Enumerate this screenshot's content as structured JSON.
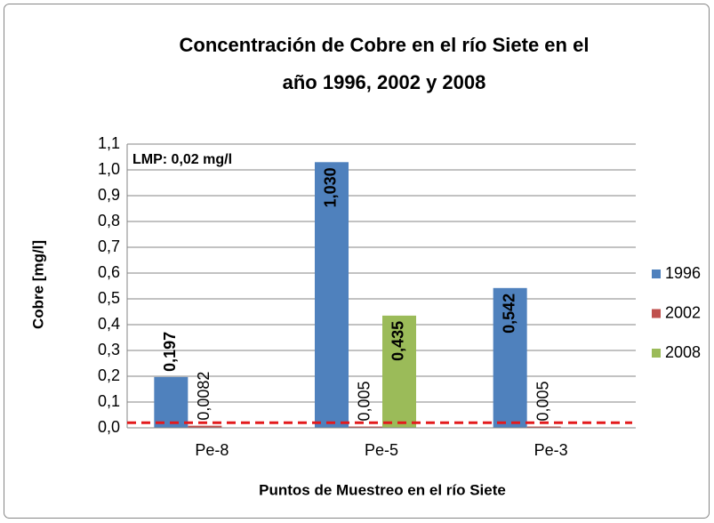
{
  "chart_data": {
    "type": "bar",
    "title": [
      "Concentración de Cobre en el río Siete en el",
      "año 1996, 2002 y 2008"
    ],
    "x_label": "Puntos de Muestreo en el río Siete",
    "y_label": "Cobre [mg/l]",
    "categories": [
      "Pe-8",
      "Pe-5",
      "Pe-3"
    ],
    "series": [
      {
        "name": "1996",
        "color": "#4f81bd",
        "values": [
          0.197,
          1.03,
          0.542
        ],
        "value_labels": [
          "0,197",
          "1,030",
          "0,542"
        ]
      },
      {
        "name": "2002",
        "color": "#c0504d",
        "values": [
          0.0082,
          0.005,
          0.005
        ],
        "value_labels": [
          "0,0082",
          "0,005",
          "0,005"
        ]
      },
      {
        "name": "2008",
        "color": "#9bbb59",
        "values": [
          null,
          0.435,
          null
        ],
        "value_labels": [
          null,
          "0,435",
          null
        ]
      }
    ],
    "ylim": [
      0,
      1.1
    ],
    "yticks": [
      {
        "value": 0,
        "label": "0,0"
      },
      {
        "value": 0.1,
        "label": "0,1"
      },
      {
        "value": 0.2,
        "label": "0,2"
      },
      {
        "value": 0.3,
        "label": "0,3"
      },
      {
        "value": 0.4,
        "label": "0,4"
      },
      {
        "value": 0.5,
        "label": "0,5"
      },
      {
        "value": 0.6,
        "label": "0,6"
      },
      {
        "value": 0.7,
        "label": "0,7"
      },
      {
        "value": 0.8,
        "label": "0,8"
      },
      {
        "value": 0.9,
        "label": "0,9"
      },
      {
        "value": 1.0,
        "label": "1,0"
      },
      {
        "value": 1.1,
        "label": "1,1"
      }
    ],
    "grid": true,
    "legend": "right",
    "reference_line": {
      "value": 0.02,
      "label": "LMP: 0,02 mg/l",
      "color": "#e31a1c"
    }
  }
}
